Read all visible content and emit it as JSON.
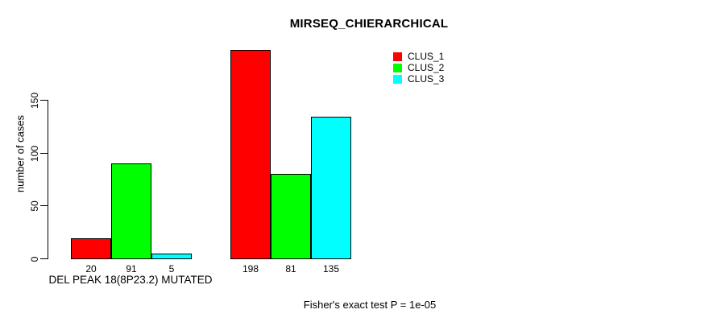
{
  "chart": {
    "title": "MIRSEQ_CHIERARCHICAL",
    "ylabel": "number of cases",
    "xlabel": "DEL PEAK 18(8P23.2) MUTATED",
    "footer": "Fisher's exact test P = 1e-05"
  },
  "chart_data": {
    "type": "bar",
    "title": "MIRSEQ_CHIERARCHICAL",
    "xlabel": "DEL PEAK 18(8P23.2) MUTATED",
    "ylabel": "number of cases",
    "ylim": [
      0,
      150
    ],
    "yticks": [
      0,
      50,
      100,
      150
    ],
    "grid": false,
    "legend_position": "top-right",
    "categories": [
      "DEL PEAK 18(8P23.2) MUTATED",
      ""
    ],
    "series": [
      {
        "name": "CLUS_1",
        "color": "#FF0000",
        "values": [
          20,
          198
        ]
      },
      {
        "name": "CLUS_2",
        "color": "#00FF00",
        "values": [
          91,
          81
        ]
      },
      {
        "name": "CLUS_3",
        "color": "#00FFFF",
        "values": [
          5,
          135
        ]
      }
    ],
    "bar_labels": [
      [
        "20",
        "91",
        "5"
      ],
      [
        "198",
        "81",
        "135"
      ]
    ],
    "annotation": "Fisher's exact test P = 1e-05"
  }
}
